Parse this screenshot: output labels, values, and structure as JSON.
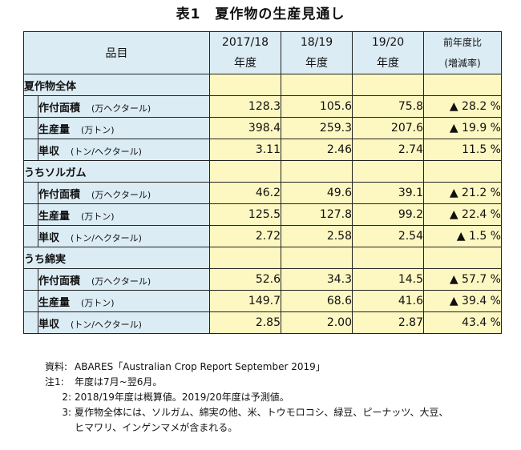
{
  "title": "表1　夏作物の生産見通し",
  "header": {
    "item": "品目",
    "col1_a": "2017/18",
    "col1_b": "年度",
    "col2_a": "18/19",
    "col2_b": "年度",
    "col3_a": "19/20",
    "col3_b": "年度",
    "col4_a": "前年度比",
    "col4_b": "(増減率)"
  },
  "sections": [
    {
      "name": "夏作物全体",
      "rows": [
        {
          "item": "作付面積",
          "unit": "(万ヘクタール)",
          "v1": "128.3",
          "v2": "105.6",
          "v3": "75.8",
          "change": "▲ 28.2 %"
        },
        {
          "item": "生産量",
          "unit": "(万トン)",
          "v1": "398.4",
          "v2": "259.3",
          "v3": "207.6",
          "change": "▲ 19.9 %"
        },
        {
          "item": "単収",
          "unit": "(トン/ヘクタール)",
          "v1": "3.11",
          "v2": "2.46",
          "v3": "2.74",
          "change": "11.5 %"
        }
      ]
    },
    {
      "name": "うちソルガム",
      "rows": [
        {
          "item": "作付面積",
          "unit": "(万ヘクタール)",
          "v1": "46.2",
          "v2": "49.6",
          "v3": "39.1",
          "change": "▲ 21.2 %"
        },
        {
          "item": "生産量",
          "unit": "(万トン)",
          "v1": "125.5",
          "v2": "127.8",
          "v3": "99.2",
          "change": "▲ 22.4 %"
        },
        {
          "item": "単収",
          "unit": "(トン/ヘクタール)",
          "v1": "2.72",
          "v2": "2.58",
          "v3": "2.54",
          "change": "▲ 1.5 %"
        }
      ]
    },
    {
      "name": "うち綿実",
      "rows": [
        {
          "item": "作付面積",
          "unit": "(万ヘクタール)",
          "v1": "52.6",
          "v2": "34.3",
          "v3": "14.5",
          "change": "▲ 57.7 %"
        },
        {
          "item": "生産量",
          "unit": "(万トン)",
          "v1": "149.7",
          "v2": "68.6",
          "v3": "41.6",
          "change": "▲ 39.4 %"
        },
        {
          "item": "単収",
          "unit": "(トン/ヘクタール)",
          "v1": "2.85",
          "v2": "2.00",
          "v3": "2.87",
          "change": "43.4 %"
        }
      ]
    }
  ],
  "notes": {
    "source_label": "資料:",
    "source_text": "ABARES「Australian Crop Report September 2019」",
    "note1_label": "注1:",
    "note1_text": "年度は7月~翌6月。",
    "note2_label": "2:",
    "note2_text": "2018/19年度は概算値。2019/20年度は予測値。",
    "note3_label": "3:",
    "note3_text": "夏作物全体には、ソルガム、綿実の他、米、トウモロコシ、緑豆、ピーナッツ、大豆、",
    "note3_cont": "ヒマワリ、インゲンマメが含まれる。"
  }
}
